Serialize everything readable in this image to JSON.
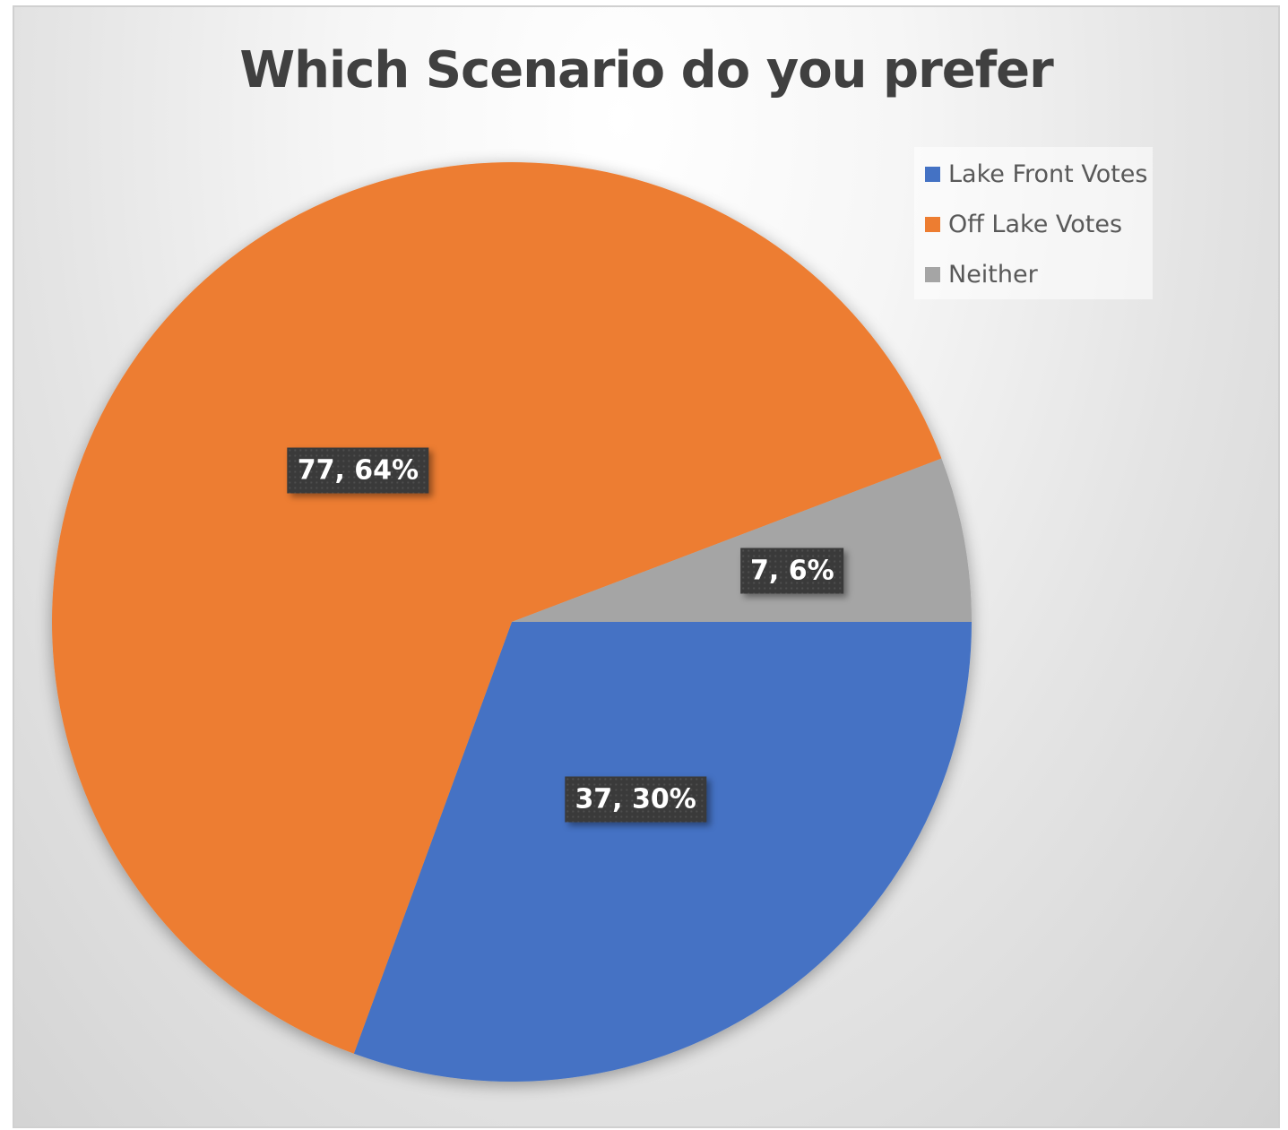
{
  "chart_data": {
    "type": "pie",
    "title": "Which Scenario do you prefer",
    "categories": [
      "Lake Front Votes",
      "Off Lake Votes",
      "Neither"
    ],
    "values": [
      37,
      77,
      7
    ],
    "data_labels": [
      "37, 30%",
      "77, 64%",
      "7, 6%"
    ],
    "colors": [
      "#4472C4",
      "#ED7D31",
      "#A5A5A5"
    ],
    "legend_position": "top-right",
    "start_angle_deg": 90,
    "direction": "clockwise"
  }
}
